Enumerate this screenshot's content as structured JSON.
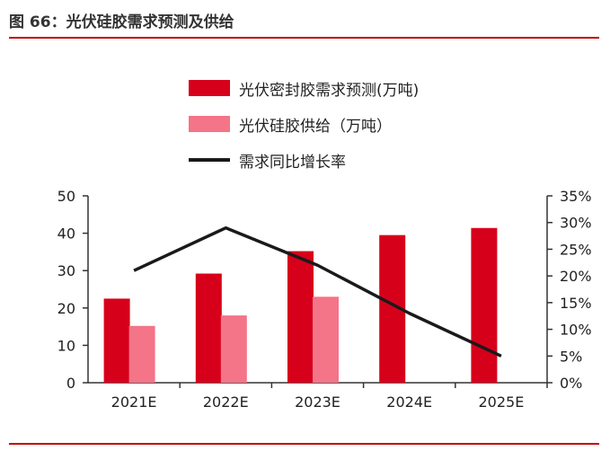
{
  "header": {
    "title": "图 66：光伏硅胶需求预测及供给"
  },
  "colors": {
    "demand": "#d7001b",
    "supply": "#f47488",
    "growth": "#1a1a1a",
    "rule": "#c00000"
  },
  "chart_data": {
    "type": "bar",
    "categories": [
      "2021E",
      "2022E",
      "2023E",
      "2024E",
      "2025E"
    ],
    "series": [
      {
        "name": "光伏密封胶需求预测(万吨)",
        "type": "bar",
        "axis": "left",
        "values": [
          22.5,
          29.2,
          35.2,
          39.5,
          41.4
        ]
      },
      {
        "name": "光伏硅胶供给（万吨）",
        "type": "bar",
        "axis": "left",
        "values": [
          15.2,
          18.0,
          23.0,
          null,
          null
        ]
      },
      {
        "name": "需求同比增长率",
        "type": "line",
        "axis": "right",
        "values": [
          0.21,
          0.29,
          0.22,
          0.13,
          0.05
        ]
      }
    ],
    "y_left": {
      "min": 0,
      "max": 50,
      "ticks": [
        0,
        10,
        20,
        30,
        40,
        50
      ],
      "tick_labels": [
        "0",
        "10",
        "20",
        "30",
        "40",
        "50"
      ]
    },
    "y_right": {
      "min": 0,
      "max": 0.35,
      "ticks": [
        0,
        0.05,
        0.1,
        0.15,
        0.2,
        0.25,
        0.3,
        0.35
      ],
      "tick_labels": [
        "0%",
        "5%",
        "10%",
        "15%",
        "20%",
        "25%",
        "30%",
        "35%"
      ]
    },
    "legend_position": "top",
    "grid": false
  }
}
